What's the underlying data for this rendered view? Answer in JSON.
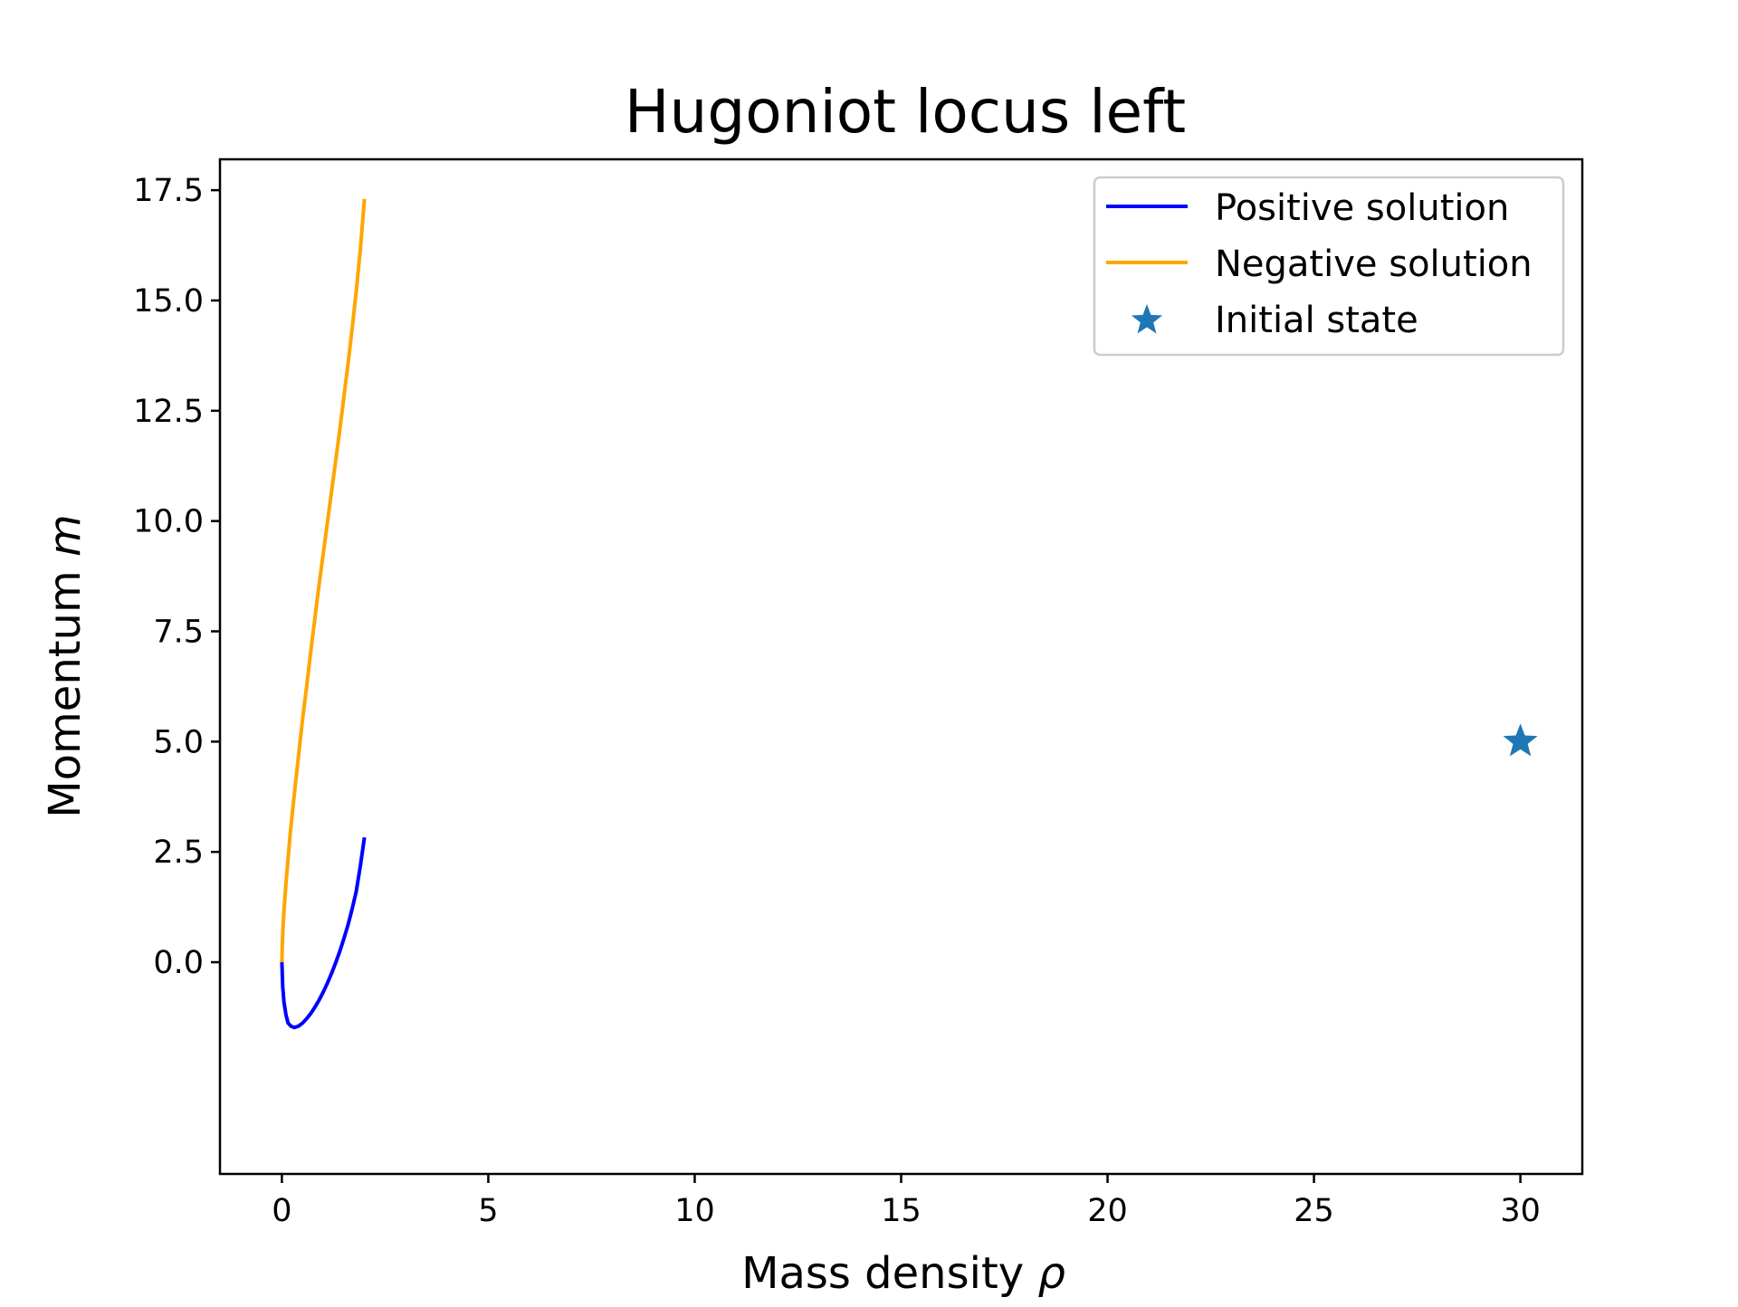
{
  "chart_data": {
    "type": "line",
    "title": "Hugoniot locus left",
    "xlabel": "Mass density ",
    "xlabel_symbol": "ρ",
    "ylabel": "Momentum ",
    "ylabel_symbol": "m",
    "xlim": [
      -1.5,
      31.5
    ],
    "ylim": [
      -4.8,
      18.2
    ],
    "xticks": [
      0,
      5,
      10,
      15,
      20,
      25,
      30
    ],
    "xtick_labels": [
      "0",
      "5",
      "10",
      "15",
      "20",
      "25",
      "30"
    ],
    "yticks": [
      0,
      2.5,
      5,
      7.5,
      10,
      12.5,
      15,
      17.5
    ],
    "ytick_labels": [
      "0.0",
      "2.5",
      "5.0",
      "7.5",
      "10.0",
      "12.5",
      "15.0",
      "17.5"
    ],
    "grid": false,
    "legend_position": "top-right",
    "series": [
      {
        "name": "Positive solution",
        "color": "#0000ff",
        "points": [
          [
            0,
            0
          ],
          [
            0.02,
            -0.55
          ],
          [
            0.05,
            -0.9
          ],
          [
            0.1,
            -1.2
          ],
          [
            0.15,
            -1.38
          ],
          [
            0.22,
            -1.45
          ],
          [
            0.3,
            -1.48
          ],
          [
            0.4,
            -1.45
          ],
          [
            0.5,
            -1.38
          ],
          [
            0.6,
            -1.28
          ],
          [
            0.7,
            -1.16
          ],
          [
            0.8,
            -1.02
          ],
          [
            0.9,
            -0.86
          ],
          [
            1.0,
            -0.68
          ],
          [
            1.1,
            -0.48
          ],
          [
            1.2,
            -0.26
          ],
          [
            1.3,
            -0.02
          ],
          [
            1.4,
            0.24
          ],
          [
            1.5,
            0.53
          ],
          [
            1.6,
            0.84
          ],
          [
            1.7,
            1.2
          ],
          [
            1.8,
            1.6
          ],
          [
            1.9,
            2.18
          ],
          [
            2.0,
            2.83
          ]
        ]
      },
      {
        "name": "Negative solution",
        "color": "#ffa500",
        "points": [
          [
            0,
            0
          ],
          [
            0.01,
            0.4
          ],
          [
            0.03,
            0.85
          ],
          [
            0.06,
            1.3
          ],
          [
            0.1,
            1.8
          ],
          [
            0.15,
            2.35
          ],
          [
            0.2,
            2.9
          ],
          [
            0.3,
            3.8
          ],
          [
            0.4,
            4.65
          ],
          [
            0.5,
            5.5
          ],
          [
            0.6,
            6.25
          ],
          [
            0.7,
            7.05
          ],
          [
            0.8,
            7.8
          ],
          [
            0.9,
            8.55
          ],
          [
            1.0,
            9.25
          ],
          [
            1.1,
            9.95
          ],
          [
            1.2,
            10.65
          ],
          [
            1.3,
            11.35
          ],
          [
            1.4,
            12.05
          ],
          [
            1.5,
            12.8
          ],
          [
            1.6,
            13.55
          ],
          [
            1.7,
            14.35
          ],
          [
            1.8,
            15.2
          ],
          [
            1.9,
            16.15
          ],
          [
            2.0,
            17.3
          ]
        ]
      },
      {
        "name": "Initial state",
        "color": "#1f77b4",
        "marker": "star",
        "points": [
          [
            30,
            5
          ]
        ]
      }
    ]
  }
}
